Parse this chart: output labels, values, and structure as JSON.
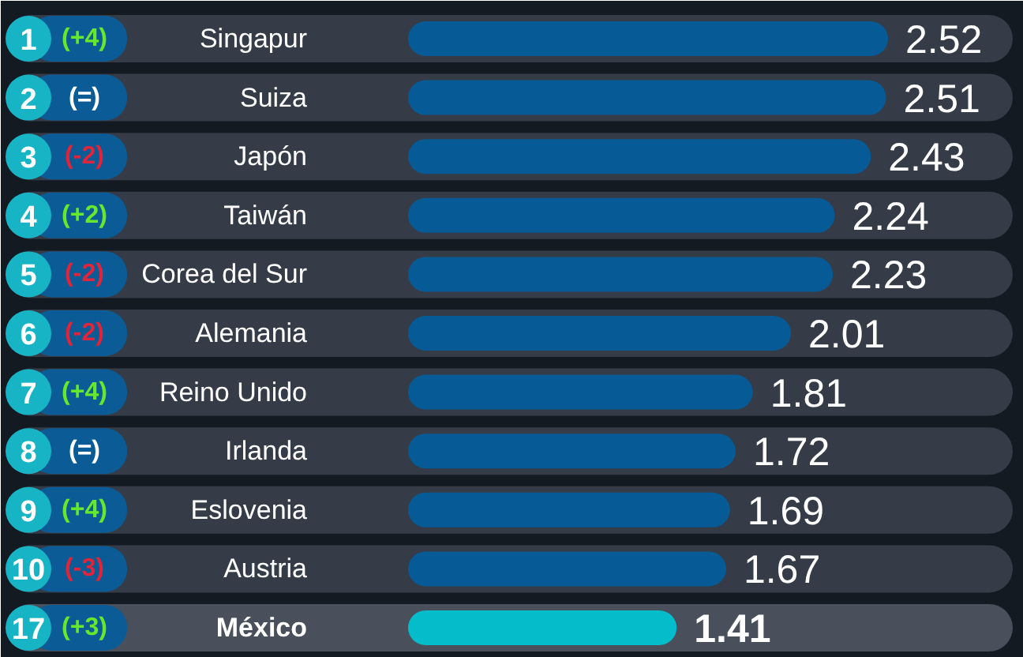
{
  "chart_data": {
    "type": "bar",
    "orientation": "horizontal",
    "categories": [
      "Singapur",
      "Suiza",
      "Japón",
      "Taiwán",
      "Corea del Sur",
      "Alemania",
      "Reino Unido",
      "Irlanda",
      "Eslovenia",
      "Austria",
      "México"
    ],
    "values": [
      2.52,
      2.51,
      2.43,
      2.24,
      2.23,
      2.01,
      1.81,
      1.72,
      1.69,
      1.67,
      1.41
    ],
    "colors": [
      "#065a96",
      "#065a96",
      "#065a96",
      "#065a96",
      "#065a96",
      "#065a96",
      "#065a96",
      "#065a96",
      "#065a96",
      "#065a96",
      "#05bccb"
    ],
    "data_labels": true,
    "tick_labels": "y",
    "annotations": [
      "1",
      "(+4)",
      "2",
      "(=)",
      "3",
      "(-2)",
      "4",
      "(+2)",
      "5",
      "(-2)",
      "6",
      "(-2)",
      "7",
      "(+4)",
      "8",
      "(=)",
      "9",
      "(+4)",
      "10",
      "(-3)",
      "17",
      "(+3)"
    ]
  }
}
